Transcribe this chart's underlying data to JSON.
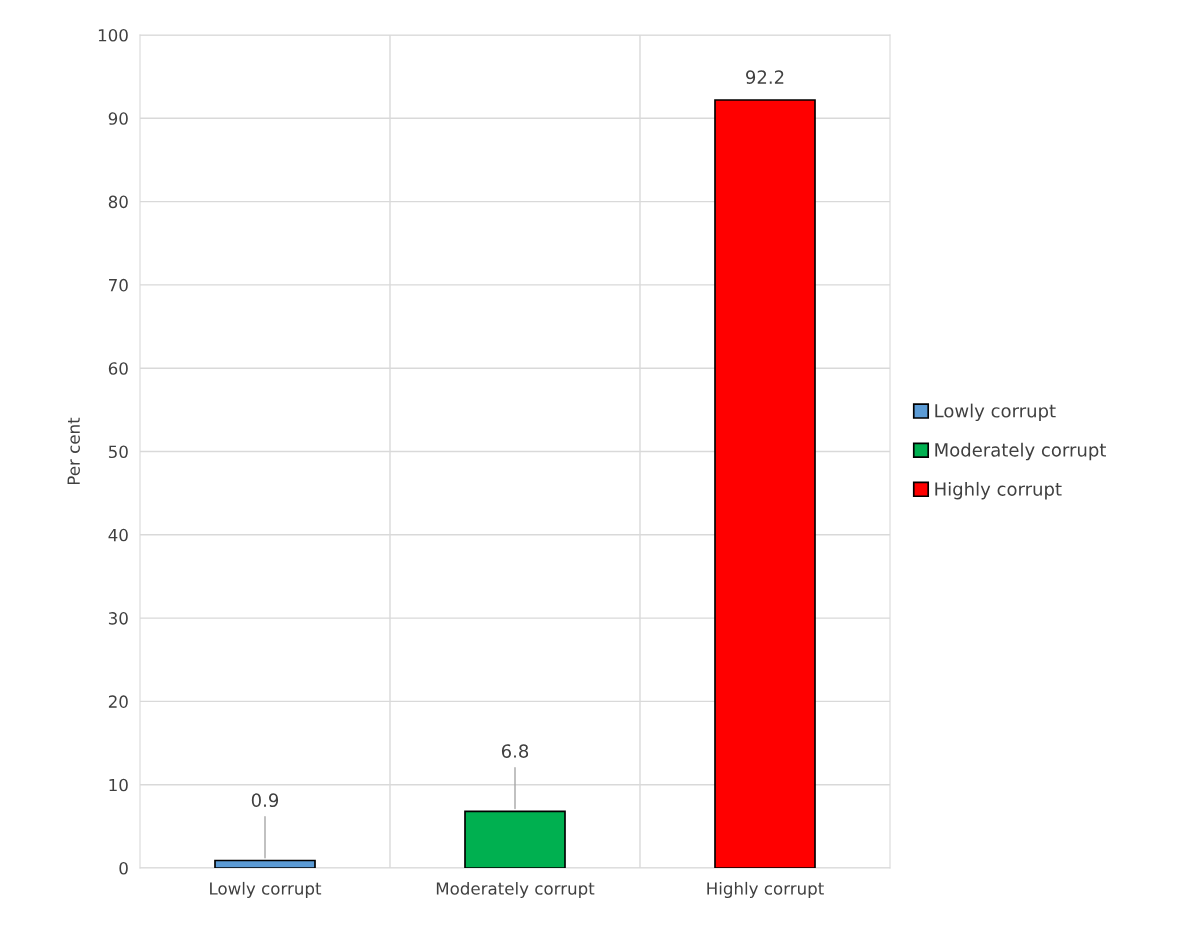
{
  "chart_data": {
    "type": "bar",
    "ylabel": "Per cent",
    "categories": [
      "Lowly corrupt",
      "Moderately corrupt",
      "Highly corrupt"
    ],
    "series": [
      {
        "name": "Lowly corrupt",
        "color": "#5b9bd5",
        "values": [
          0.9,
          null,
          null
        ]
      },
      {
        "name": "Moderately corrupt",
        "color": "#00b050",
        "values": [
          null,
          6.8,
          null
        ]
      },
      {
        "name": "Highly corrupt",
        "color": "#ff0000",
        "values": [
          null,
          null,
          92.2
        ]
      }
    ],
    "ylim": [
      0,
      100
    ],
    "yticks": [
      0,
      10,
      20,
      30,
      40,
      50,
      60,
      70,
      80,
      90,
      100
    ],
    "grid": true,
    "legend": "right",
    "data_labels": true
  }
}
